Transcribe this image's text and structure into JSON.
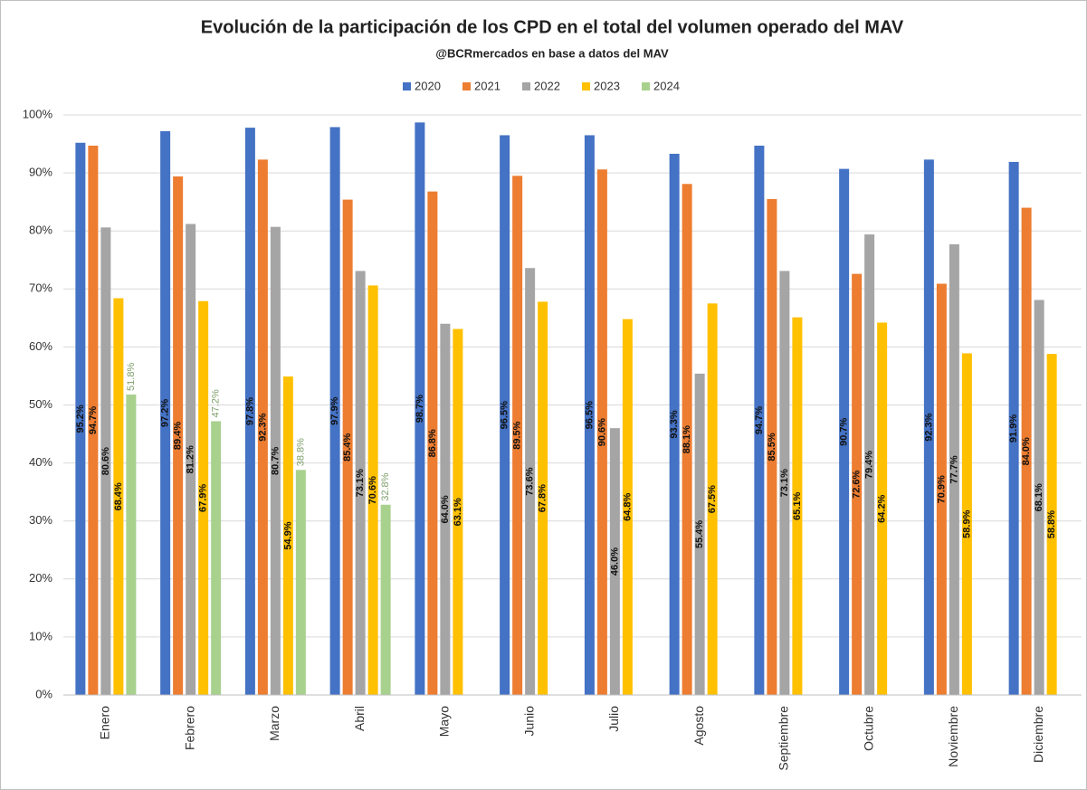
{
  "chart_data": {
    "type": "bar",
    "title": "Evolución de la participación de los CPD en el total del volumen operado del MAV",
    "subtitle": "@BCRmercados en base a datos del MAV",
    "categories": [
      "Enero",
      "Febrero",
      "Marzo",
      "Abril",
      "Mayo",
      "Junio",
      "Julio",
      "Agosto",
      "Septiembre",
      "Octubre",
      "Noviembre",
      "Diciembre"
    ],
    "series": [
      {
        "name": "2020",
        "color": "#4472c4",
        "values": [
          95.2,
          97.2,
          97.8,
          97.9,
          98.7,
          96.5,
          96.5,
          93.3,
          94.7,
          90.7,
          92.3,
          91.9
        ],
        "value_labels": [
          "95.2%",
          "97.2%",
          "97.8%",
          "97.9%",
          "98.7%",
          "96.5%",
          "96.5%",
          "93.3%",
          "94.7%",
          "90.7%",
          "92.3%",
          "91.9%"
        ]
      },
      {
        "name": "2021",
        "color": "#ed7d31",
        "values": [
          94.7,
          89.4,
          92.3,
          85.4,
          86.8,
          89.5,
          90.6,
          88.1,
          85.5,
          72.6,
          70.9,
          84.0
        ],
        "value_labels": [
          "94.7%",
          "89.4%",
          "92.3%",
          "85.4%",
          "86.8%",
          "89.5%",
          "90.6%",
          "88.1%",
          "85.5%",
          "72.6%",
          "70.9%",
          "84.0%"
        ]
      },
      {
        "name": "2022",
        "color": "#a5a5a5",
        "values": [
          80.6,
          81.2,
          80.7,
          73.1,
          64.0,
          73.6,
          46.0,
          55.4,
          73.1,
          79.4,
          77.7,
          68.1
        ],
        "value_labels": [
          "80.6%",
          "81.2%",
          "80.7%",
          "73.1%",
          "64.0%",
          "73.6%",
          "46.0%",
          "55.4%",
          "73.1%",
          "79.4%",
          "77.7%",
          "68.1%"
        ]
      },
      {
        "name": "2023",
        "color": "#ffc000",
        "values": [
          68.4,
          67.9,
          54.9,
          70.6,
          63.1,
          67.8,
          64.8,
          67.5,
          65.1,
          64.2,
          58.9,
          58.8
        ],
        "value_labels": [
          "68.4%",
          "67.9%",
          "54.9%",
          "70.6%",
          "63.1%",
          "67.8%",
          "64.8%",
          "67.5%",
          "65.1%",
          "64.2%",
          "58.9%",
          "58.8%"
        ]
      },
      {
        "name": "2024",
        "color": "#a9d18e",
        "values": [
          51.8,
          47.2,
          38.8,
          32.8,
          null,
          null,
          null,
          null,
          null,
          null,
          null,
          null
        ],
        "value_labels": [
          "51.8%",
          "47.2%",
          "38.8%",
          "32.8%",
          null,
          null,
          null,
          null,
          null,
          null,
          null,
          null
        ]
      }
    ],
    "ylim": [
      0,
      100
    ],
    "yticks": [
      {
        "value": 0,
        "label": "0%"
      },
      {
        "value": 10,
        "label": "10%"
      },
      {
        "value": 20,
        "label": "20%"
      },
      {
        "value": 30,
        "label": "30%"
      },
      {
        "value": 40,
        "label": "40%"
      },
      {
        "value": 50,
        "label": "50%"
      },
      {
        "value": 60,
        "label": "60%"
      },
      {
        "value": 70,
        "label": "70%"
      },
      {
        "value": 80,
        "label": "80%"
      },
      {
        "value": 90,
        "label": "90%"
      },
      {
        "value": 100,
        "label": "100%"
      }
    ],
    "grid": true,
    "legend": "top"
  }
}
